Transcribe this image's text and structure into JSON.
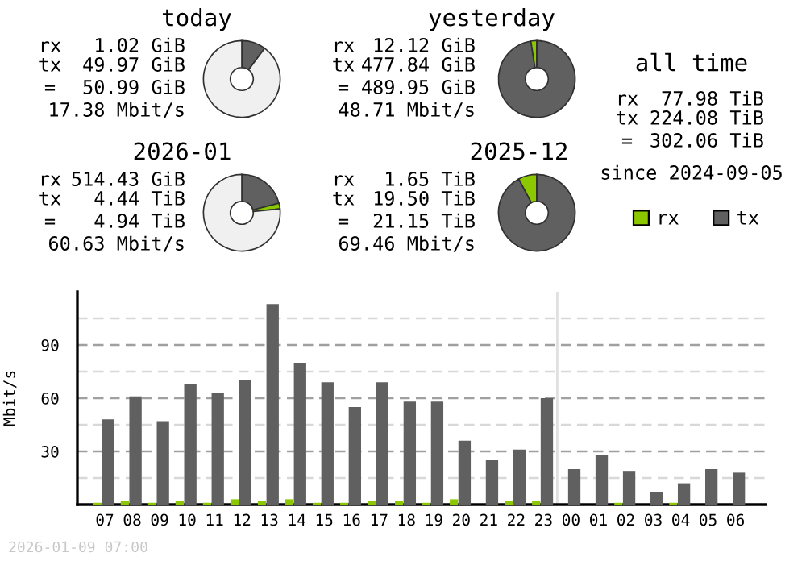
{
  "chart_data": [
    {
      "type": "donut",
      "title": "today",
      "categories": [
        null,
        null,
        null
      ],
      "values": [
        null,
        10.2,
        89.8
      ],
      "colors": [
        "#8cc800",
        "#606060",
        "#f0f0f0"
      ],
      "annotations": [
        "rx",
        "1.02 GiB",
        "tx",
        "49.97 GiB",
        "=",
        "50.99 GiB",
        "17.38 Mbit/s"
      ]
    },
    {
      "type": "donut",
      "title": "yesterday",
      "categories": [
        null,
        null,
        null
      ],
      "values": [
        2.47,
        97.53,
        0
      ],
      "colors": [
        "#8cc800",
        "#606060",
        "#f0f0f0"
      ],
      "annotations": [
        "rx",
        "12.12 GiB",
        "tx",
        "477.84 GiB",
        "=",
        "489.95 GiB",
        "48.71 Mbit/s"
      ]
    },
    {
      "type": "other",
      "title": "all time",
      "annotations": [
        "rx",
        "77.98 TiB",
        "tx",
        "224.08 TiB",
        "=",
        "302.06 TiB",
        "since 2024-09-05"
      ]
    },
    {
      "type": "donut",
      "title": "2026-01",
      "categories": [
        null,
        null,
        null
      ],
      "values": [
        2.37,
        20.99,
        76.64
      ],
      "colors": [
        "#8cc800",
        "#606060",
        "#f0f0f0"
      ],
      "annotations": [
        "rx",
        "514.43 GiB",
        "tx",
        "4.44 TiB",
        "=",
        "4.94 TiB",
        "60.63 Mbit/s"
      ]
    },
    {
      "type": "donut",
      "title": "2025-12",
      "categories": [
        null,
        null,
        null
      ],
      "values": [
        7.8,
        92.2,
        0
      ],
      "colors": [
        "#8cc800",
        "#606060",
        "#f0f0f0"
      ],
      "annotations": [
        "rx",
        "1.65 TiB",
        "tx",
        "19.50 TiB",
        "=",
        "21.15 TiB",
        "69.46 Mbit/s"
      ]
    },
    {
      "type": "bar",
      "ylabel": "Mbit/s",
      "categories": [
        "07",
        "08",
        "09",
        "10",
        "11",
        "12",
        "13",
        "14",
        "15",
        "16",
        "17",
        "18",
        "19",
        "20",
        "21",
        "22",
        "23",
        "00",
        "01",
        "02",
        "03",
        "04",
        "05",
        "06"
      ],
      "series": [
        {
          "name": "rx",
          "color": "#8cc800",
          "values": [
            1,
            2,
            1,
            2,
            1,
            3,
            2,
            3,
            1,
            1,
            2,
            2,
            1,
            3,
            0,
            2,
            2,
            0,
            0,
            1,
            0,
            1,
            0,
            0
          ]
        },
        {
          "name": "tx",
          "color": "#606060",
          "values": [
            48,
            61,
            47,
            68,
            63,
            70,
            113,
            80,
            69,
            55,
            69,
            58,
            58,
            36,
            25,
            31,
            60,
            20,
            28,
            19,
            7,
            12,
            20,
            18
          ]
        }
      ],
      "ylim": [
        0,
        120
      ],
      "yticks": [
        {
          "value": 15,
          "label": null
        },
        30,
        {
          "value": 45,
          "label": null
        },
        60,
        {
          "value": 75,
          "label": null
        },
        90,
        {
          "value": 105,
          "label": null
        }
      ],
      "grid": "y",
      "legend": "top right",
      "ref_lines": [
        {
          "axis": "x",
          "value": "00",
          "color": "#e0e0e0"
        }
      ],
      "annotations": [
        "2026-01-09 07:00"
      ]
    }
  ]
}
